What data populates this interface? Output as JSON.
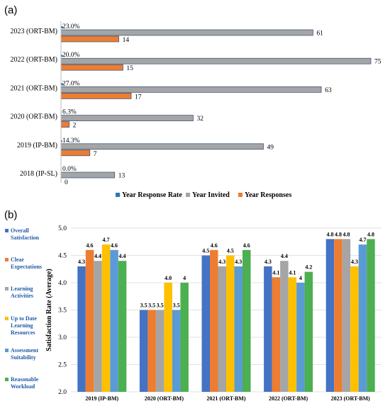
{
  "panel_labels": {
    "a": "(a)",
    "b": "(b)"
  },
  "colors": {
    "response_rate": "#2e75b6",
    "invited": "#a5a5a5",
    "responses": "#ed7d31",
    "overall": "#4472c4",
    "clear": "#ed7d31",
    "learning": "#a5a5a5",
    "uptodate": "#ffc000",
    "assessment": "#5b9bd5",
    "workload": "#4caf50"
  },
  "chart_data": [
    {
      "type": "bar",
      "orientation": "horizontal",
      "categories": [
        "2023 (ORT-BM)",
        "2022 (ORT-BM)",
        "2021 (ORT-BM)",
        "2020 (ORT-BM)",
        "2019 (IP-BM)",
        "2018 (IP-SL)"
      ],
      "series": [
        {
          "name": "Year Response Rate",
          "values": [
            23.0,
            20.0,
            27.0,
            6.3,
            14.3,
            0.0
          ],
          "labels": [
            "23.0%",
            "20.0%",
            "27.0%",
            "6.3%",
            "14.3%",
            "0.0%"
          ]
        },
        {
          "name": "Year Invited",
          "values": [
            61,
            75,
            63,
            32,
            49,
            13
          ]
        },
        {
          "name": "Year Responses",
          "values": [
            14,
            15,
            17,
            2,
            7,
            0
          ]
        }
      ],
      "xlim": [
        0,
        75
      ],
      "legend": "bottom"
    },
    {
      "type": "bar",
      "categories": [
        "2019 (IP-BM)",
        "2020 (ORT-BM)",
        "2021 (ORT-BM)",
        "2022 (ORT-BM)",
        "2023 (ORT-BM)"
      ],
      "series": [
        {
          "name": "Overall Satisfaction",
          "values": [
            4.3,
            3.5,
            4.5,
            4.3,
            4.8
          ],
          "labels": [
            "4.3",
            "3.5",
            "4.5",
            "4.3",
            "4.8"
          ]
        },
        {
          "name": "Clear Expectations",
          "values": [
            4.6,
            3.5,
            4.6,
            4.1,
            4.8
          ],
          "labels": [
            "4.6",
            "3.5",
            "4.6",
            "4.1",
            "4.8"
          ]
        },
        {
          "name": "Learning Activities",
          "values": [
            4.4,
            3.5,
            4.3,
            4.4,
            4.8
          ],
          "labels": [
            "4.4",
            "3.5",
            "4.3",
            "4.4",
            "4.8"
          ]
        },
        {
          "name": "Up to Date Learning Resources",
          "values": [
            4.7,
            4.0,
            4.5,
            4.1,
            4.3
          ],
          "labels": [
            "4.7",
            "4.0",
            "4.5",
            "4.1",
            "4.3"
          ]
        },
        {
          "name": "Assessment Suitability",
          "values": [
            4.6,
            3.5,
            4.3,
            4.0,
            4.7
          ],
          "labels": [
            "4.6",
            "3.5",
            "4.3",
            "4",
            "4.7"
          ]
        },
        {
          "name": "Reasonable Workload",
          "values": [
            4.4,
            4.0,
            4.6,
            4.2,
            4.8
          ],
          "labels": [
            "4.4",
            "4",
            "4.6",
            "4.2",
            "4.8"
          ]
        }
      ],
      "ylabel": "Satisfaction Rate (Average)",
      "ylim": [
        2.0,
        5.0
      ],
      "yticks": [
        "2.0",
        "2.5",
        "3.0",
        "3.5",
        "4.0",
        "4.5",
        "5.0"
      ],
      "grid": true,
      "legend": "left"
    }
  ]
}
